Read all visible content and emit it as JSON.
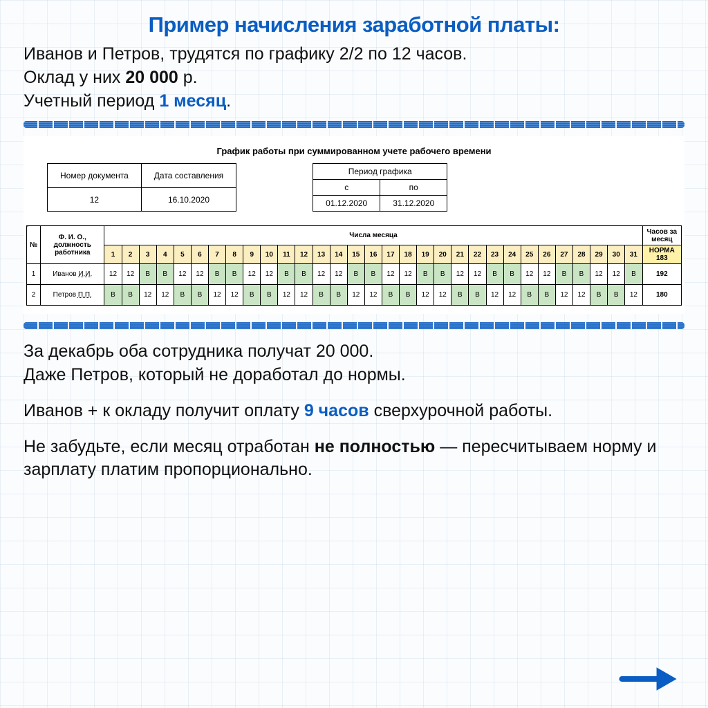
{
  "title": "Пример начисления заработной платы:",
  "intro_line1_a": "Иванов и Петров, трудятся по графику 2/2 по 12 часов.",
  "intro_line2_a": "Оклад у них ",
  "intro_line2_b": "20 000",
  "intro_line2_c": " р.",
  "intro_line3_a": "Учетный период ",
  "intro_line3_b": "1 месяц",
  "intro_line3_c": ".",
  "doc": {
    "title": "График работы при суммированном учете рабочего времени",
    "h_docno": "Номер документа",
    "h_date": "Дата составления",
    "v_docno": "12",
    "v_date": "16.10.2020",
    "h_period": "Период графика",
    "h_from": "с",
    "h_to": "по",
    "v_from": "01.12.2020",
    "v_to": "31.12.2020"
  },
  "sched": {
    "h_no": "№",
    "h_name": "Ф. И. О., должность работника",
    "h_days": "Числа месяца",
    "h_total": "Часов за месяц",
    "norm_label": "НОРМА",
    "norm_value": "183",
    "days": [
      "1",
      "2",
      "3",
      "4",
      "5",
      "6",
      "7",
      "8",
      "9",
      "10",
      "11",
      "12",
      "13",
      "14",
      "15",
      "16",
      "17",
      "18",
      "19",
      "20",
      "21",
      "22",
      "23",
      "24",
      "25",
      "26",
      "27",
      "28",
      "29",
      "30",
      "31"
    ],
    "rows": [
      {
        "no": "1",
        "name_a": "Иванов ",
        "name_u": "И.И.",
        "cells": [
          "12",
          "12",
          "В",
          "В",
          "12",
          "12",
          "В",
          "В",
          "12",
          "12",
          "В",
          "В",
          "12",
          "12",
          "В",
          "В",
          "12",
          "12",
          "В",
          "В",
          "12",
          "12",
          "В",
          "В",
          "12",
          "12",
          "В",
          "В",
          "12",
          "12",
          "В"
        ],
        "total": "192"
      },
      {
        "no": "2",
        "name_a": "Петров ",
        "name_u": "П.П.",
        "cells": [
          "В",
          "В",
          "12",
          "12",
          "В",
          "В",
          "12",
          "12",
          "В",
          "В",
          "12",
          "12",
          "В",
          "В",
          "12",
          "12",
          "В",
          "В",
          "12",
          "12",
          "В",
          "В",
          "12",
          "12",
          "В",
          "В",
          "12",
          "12",
          "В",
          "В",
          "12"
        ],
        "total": "180"
      }
    ]
  },
  "p1": "За декабрь оба сотрудника получат 20 000.\nДаже Петров, который не доработал до нормы.",
  "p2_a": "Иванов + к окладу получит оплату ",
  "p2_b": "9 часов",
  "p2_c": " сверхурочной работы.",
  "p3_a": "Не забудьте, если месяц отработан ",
  "p3_b": "не полностью",
  "p3_c": " — пересчитываем норму и зарплату платим пропорционально.",
  "colors": {
    "accent": "#0a5dc2",
    "day_hdr": "#fbeec0",
    "norm": "#fff2a8",
    "rest": "#c9e5c4"
  }
}
